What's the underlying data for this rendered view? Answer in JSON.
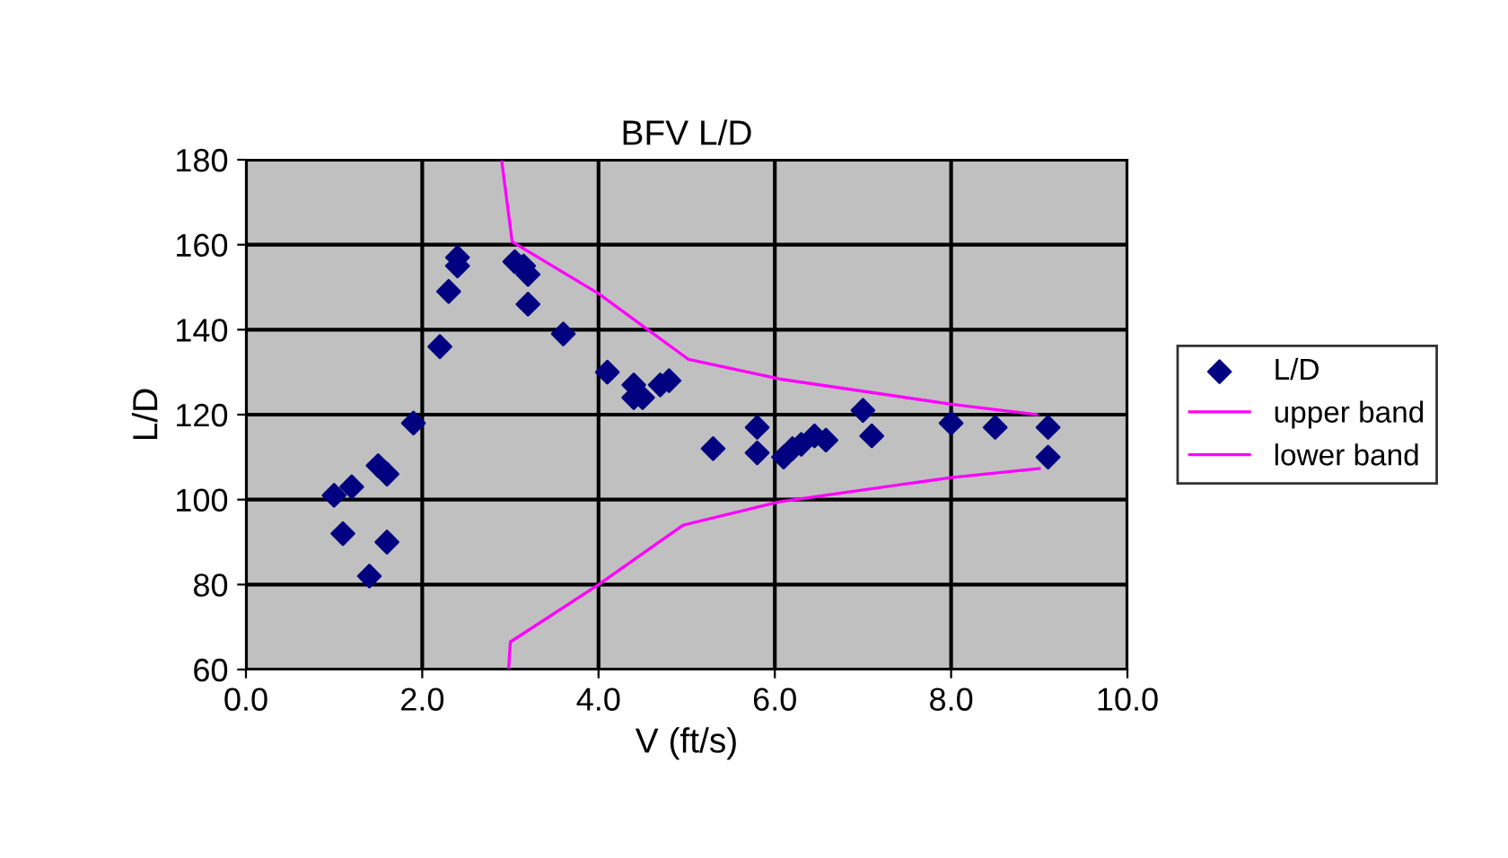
{
  "chart_data": {
    "type": "scatter",
    "title": "BFV L/D",
    "xlabel": "V (ft/s)",
    "ylabel": "L/D",
    "xlim": [
      0,
      10
    ],
    "ylim": [
      60,
      180
    ],
    "xticks": [
      {
        "value": 0,
        "label": "0.0"
      },
      {
        "value": 2,
        "label": "2.0"
      },
      {
        "value": 4,
        "label": "4.0"
      },
      {
        "value": 6,
        "label": "6.0"
      },
      {
        "value": 8,
        "label": "8.0"
      },
      {
        "value": 10,
        "label": "10.0"
      }
    ],
    "yticks": [
      60,
      80,
      100,
      120,
      140,
      160,
      180
    ],
    "grid": true,
    "legend": "right",
    "series": [
      {
        "name": "L/D",
        "marker": "diamond",
        "color": "#000080",
        "x": [
          1.0,
          1.1,
          1.2,
          1.4,
          1.5,
          1.6,
          1.6,
          1.9,
          2.2,
          2.3,
          2.4,
          2.4,
          3.05,
          3.15,
          3.2,
          3.2,
          3.6,
          4.1,
          4.4,
          4.4,
          4.5,
          4.7,
          4.8,
          5.3,
          5.8,
          5.8,
          6.1,
          6.2,
          6.3,
          6.45,
          6.58,
          7.0,
          7.1,
          8.0,
          8.5,
          9.1,
          9.1
        ],
        "values": [
          101,
          92,
          103,
          82,
          108,
          106,
          90,
          118,
          136,
          149,
          155,
          157,
          156,
          155,
          153,
          146,
          139,
          130,
          127,
          124,
          124,
          127,
          128,
          112,
          117,
          111,
          110,
          112,
          113,
          115,
          114,
          121,
          115,
          118,
          117,
          117,
          110
        ]
      },
      {
        "name": "upper band",
        "type": "line",
        "marker": "none",
        "line_style": "solid",
        "color": "#ff00ff",
        "x": [
          2.9,
          3.02,
          4.0,
          5.02,
          6.05,
          8.02,
          8.97
        ],
        "values": [
          180,
          160.7,
          148.5,
          133,
          128.4,
          122.4,
          120
        ]
      },
      {
        "name": "lower band",
        "type": "line",
        "marker": "none",
        "line_style": "solid",
        "color": "#ff00ff",
        "x": [
          2.98,
          3.0,
          4.0,
          4.96,
          6.05,
          8.0,
          9.0
        ],
        "values": [
          60,
          66.5,
          80,
          94,
          99.5,
          105.2,
          107.3
        ]
      }
    ]
  }
}
